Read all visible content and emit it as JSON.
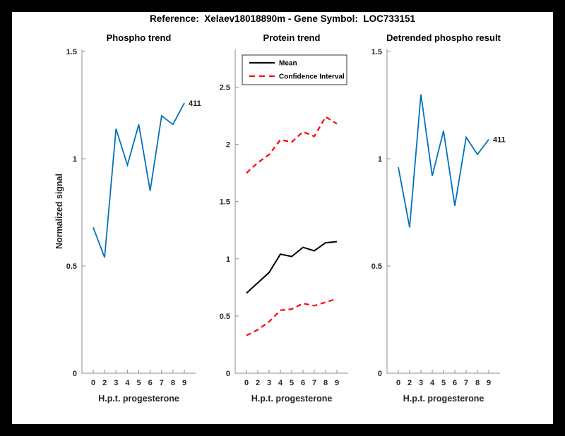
{
  "header": {
    "title": "Reference:  Xelaev18018890m - Gene Symbol:  LOC733151"
  },
  "palette": {
    "line_blue": "#0072BD",
    "ci_red": "#FF0000",
    "mean_black": "#000000",
    "frame": "#000000",
    "paper": "#FFFFFF"
  },
  "chart_data": [
    {
      "type": "line",
      "title": "Phospho trend",
      "xlabel": "H.p.t. progesterone",
      "ylabel": "Normalized signal",
      "categories": [
        "0",
        "2",
        "3",
        "4",
        "5",
        "6",
        "7",
        "8",
        "9"
      ],
      "ylim": [
        0,
        1.51
      ],
      "yticks": [
        0,
        0.5,
        1,
        1.5
      ],
      "grid": false,
      "series": [
        {
          "name": "phospho",
          "color": "#0072BD",
          "width": 1.8,
          "dash": "",
          "values": [
            0.68,
            0.54,
            1.14,
            0.97,
            1.16,
            0.85,
            1.2,
            1.16,
            1.26
          ],
          "end_label": "411"
        }
      ]
    },
    {
      "type": "line",
      "title": "Protein trend",
      "xlabel": "H.p.t. progesterone",
      "ylabel": "",
      "categories": [
        "0",
        "2",
        "3",
        "4",
        "5",
        "6",
        "7",
        "8",
        "9"
      ],
      "ylim": [
        0,
        2.83
      ],
      "yticks": [
        0,
        0.5,
        1,
        1.5,
        2,
        2.5
      ],
      "grid": false,
      "legend": {
        "position": "northwest",
        "entries": [
          {
            "label": "Mean",
            "color": "#000000",
            "dash": ""
          },
          {
            "label": "Confidence Interval",
            "color": "#FF0000",
            "dash": "8 6"
          }
        ]
      },
      "series": [
        {
          "name": "ci-upper",
          "color": "#FF0000",
          "width": 2.2,
          "dash": "7 5",
          "values": [
            1.75,
            1.84,
            1.91,
            2.04,
            2.02,
            2.11,
            2.07,
            2.24,
            2.18
          ]
        },
        {
          "name": "mean",
          "color": "#000000",
          "width": 2,
          "dash": "",
          "values": [
            0.7,
            0.79,
            0.88,
            1.04,
            1.02,
            1.1,
            1.07,
            1.14,
            1.15
          ]
        },
        {
          "name": "ci-lower",
          "color": "#FF0000",
          "width": 2.2,
          "dash": "7 5",
          "values": [
            0.33,
            0.38,
            0.45,
            0.55,
            0.56,
            0.61,
            0.59,
            0.62,
            0.65
          ]
        }
      ]
    },
    {
      "type": "line",
      "title": "Detrended phospho result",
      "xlabel": "H.p.t. progesterone",
      "ylabel": "",
      "categories": [
        "0",
        "2",
        "3",
        "4",
        "5",
        "6",
        "7",
        "8",
        "9"
      ],
      "ylim": [
        0,
        1.51
      ],
      "yticks": [
        0,
        0.5,
        1,
        1.5
      ],
      "grid": false,
      "series": [
        {
          "name": "detrended",
          "color": "#0072BD",
          "width": 1.8,
          "dash": "",
          "values": [
            0.96,
            0.68,
            1.3,
            0.92,
            1.13,
            0.78,
            1.1,
            1.02,
            1.09
          ],
          "end_label": "411"
        }
      ]
    }
  ]
}
